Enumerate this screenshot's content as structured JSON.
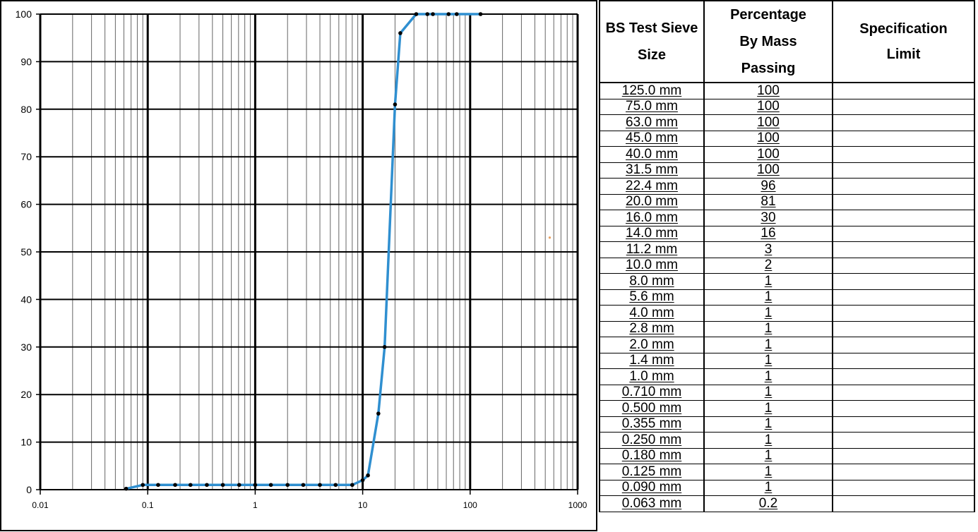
{
  "chart_data": {
    "type": "line",
    "xscale": "log",
    "xlim": [
      0.01,
      1000
    ],
    "ylim": [
      0,
      100
    ],
    "grid": true,
    "x_ticks": [
      "0.01",
      "0.1",
      "1",
      "10",
      "100",
      "1000"
    ],
    "y_ticks": [
      "0",
      "10",
      "20",
      "30",
      "40",
      "50",
      "60",
      "70",
      "80",
      "90",
      "100"
    ],
    "title": "",
    "xlabel": "",
    "ylabel": "",
    "series": [
      {
        "color": "#2f8fd0",
        "marker_color": "#000000",
        "x": [
          0.063,
          0.09,
          0.125,
          0.18,
          0.25,
          0.355,
          0.5,
          0.71,
          1.0,
          1.4,
          2.0,
          2.8,
          4.0,
          5.6,
          8.0,
          10.0,
          11.2,
          14.0,
          16.0,
          20.0,
          22.4,
          31.5,
          40.0,
          45.0,
          63.0,
          75.0,
          125.0
        ],
        "y": [
          0.2,
          1,
          1,
          1,
          1,
          1,
          1,
          1,
          1,
          1,
          1,
          1,
          1,
          1,
          1,
          2,
          3,
          16,
          30,
          81,
          96,
          100,
          100,
          100,
          100,
          100,
          100
        ]
      }
    ],
    "stray_point": {
      "x": 550,
      "y": 53,
      "color": "#e8a060"
    }
  },
  "table": {
    "headers": {
      "size": [
        "BS Test Sieve",
        "Size"
      ],
      "passing": [
        "Percentage",
        "By Mass",
        "Passing"
      ],
      "spec": [
        "Specification",
        "Limit"
      ]
    },
    "rows": [
      {
        "size": "125.0 mm",
        "passing": "100",
        "spec": ""
      },
      {
        "size": "75.0 mm",
        "passing": "100",
        "spec": ""
      },
      {
        "size": "63.0 mm",
        "passing": "100",
        "spec": ""
      },
      {
        "size": "45.0 mm",
        "passing": "100",
        "spec": ""
      },
      {
        "size": "40.0 mm",
        "passing": "100",
        "spec": ""
      },
      {
        "size": "31.5 mm",
        "passing": "100",
        "spec": ""
      },
      {
        "size": "22.4 mm",
        "passing": "96",
        "spec": ""
      },
      {
        "size": "20.0 mm",
        "passing": "81",
        "spec": ""
      },
      {
        "size": "16.0 mm",
        "passing": "30",
        "spec": ""
      },
      {
        "size": "14.0 mm",
        "passing": "16",
        "spec": ""
      },
      {
        "size": "11.2 mm",
        "passing": "3",
        "spec": ""
      },
      {
        "size": "10.0 mm",
        "passing": "2",
        "spec": ""
      },
      {
        "size": "8.0 mm",
        "passing": "1",
        "spec": ""
      },
      {
        "size": "5.6 mm",
        "passing": "1",
        "spec": ""
      },
      {
        "size": "4.0 mm",
        "passing": "1",
        "spec": ""
      },
      {
        "size": "2.8 mm",
        "passing": "1",
        "spec": ""
      },
      {
        "size": "2.0 mm",
        "passing": "1",
        "spec": ""
      },
      {
        "size": "1.4 mm",
        "passing": "1",
        "spec": ""
      },
      {
        "size": "1.0 mm",
        "passing": "1",
        "spec": ""
      },
      {
        "size": "0.710 mm",
        "passing": "1",
        "spec": ""
      },
      {
        "size": "0.500 mm",
        "passing": "1",
        "spec": ""
      },
      {
        "size": "0.355 mm",
        "passing": "1",
        "spec": ""
      },
      {
        "size": "0.250 mm",
        "passing": "1",
        "spec": ""
      },
      {
        "size": "0.180 mm",
        "passing": "1",
        "spec": ""
      },
      {
        "size": "0.125 mm",
        "passing": "1",
        "spec": ""
      },
      {
        "size": "0.090 mm",
        "passing": "1",
        "spec": ""
      },
      {
        "size": "0.063 mm",
        "passing": "0.2",
        "spec": ""
      }
    ]
  }
}
